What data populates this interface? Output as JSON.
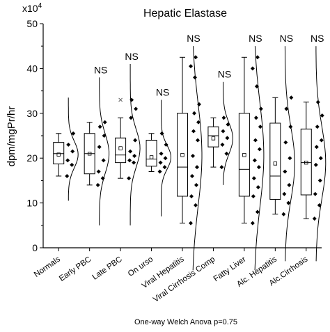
{
  "chart_data": {
    "type": "box",
    "title": "Hepatic Elastase",
    "ylabel": "dpm/mgPr/hr",
    "y_multiplier": "x10",
    "y_multiplier_exp": "4",
    "ylim": [
      0,
      50
    ],
    "yticks": [
      0,
      10,
      20,
      30,
      40,
      50
    ],
    "footnote": "One-way Welch Anova p=0.75",
    "groups": [
      {
        "label": "Normals",
        "sig": "",
        "whisker_low": 16,
        "q1": 18.7,
        "median": 21,
        "q3": 23.5,
        "whisker_high": 25.5,
        "mean": 20.8,
        "outliers": [],
        "points": [
          16,
          18.5,
          19.5,
          21.5,
          23,
          25.5
        ],
        "dist_range": [
          10.5,
          33.5
        ]
      },
      {
        "label": "Early PBC",
        "sig": "NS",
        "whisker_low": 14,
        "q1": 16.5,
        "median": 21,
        "q3": 25.5,
        "whisker_high": 28,
        "mean": 21,
        "outliers": [],
        "points": [
          14,
          15.5,
          17,
          19.5,
          22.5,
          25,
          27,
          28
        ],
        "dist_range": [
          5,
          38
        ]
      },
      {
        "label": "Late PBC",
        "sig": "NS",
        "whisker_low": 15.5,
        "q1": 19,
        "median": 20.7,
        "q3": 24.5,
        "whisker_high": 29,
        "mean": 22.2,
        "outliers": [
          33
        ],
        "points": [
          15.5,
          19,
          19.5,
          20.5,
          21.5,
          24,
          29,
          31,
          33
        ],
        "dist_range": [
          5,
          41
        ]
      },
      {
        "label": "On urso",
        "sig": "NS",
        "whisker_low": 17,
        "q1": 18.2,
        "median": 19.8,
        "q3": 24,
        "whisker_high": 25.5,
        "mean": 20.2,
        "outliers": [],
        "points": [
          17,
          18,
          19,
          20,
          21,
          23,
          25.5
        ],
        "dist_range": [
          7,
          33
        ]
      },
      {
        "label": "Viral Hepatitis",
        "sig": "NS",
        "whisker_low": 5.5,
        "q1": 11.5,
        "median": 18,
        "q3": 30,
        "whisker_high": 42.5,
        "mean": 20.7,
        "outliers": [],
        "points": [
          5.5,
          9.5,
          11.5,
          14,
          16,
          18,
          20.5,
          24,
          26,
          28,
          30,
          32,
          38,
          40.5,
          42.5
        ],
        "dist_range": [
          -5,
          45
        ]
      },
      {
        "label": "Viral Cirrhosis Comp",
        "sig": "NS",
        "whisker_low": 18,
        "q1": 22.5,
        "median": 25,
        "q3": 27,
        "whisker_high": 29,
        "mean": 24.4,
        "outliers": [],
        "points": [
          18,
          21,
          23,
          24.5,
          26,
          27.5,
          29
        ],
        "dist_range": [
          14,
          37
        ]
      },
      {
        "label": "Fatty Liver",
        "sig": "NS",
        "whisker_low": 5.5,
        "q1": 11.5,
        "median": 17.5,
        "q3": 30,
        "whisker_high": 42.5,
        "mean": 20.7,
        "outliers": [],
        "points": [
          5.5,
          8,
          11.5,
          13.5,
          15.5,
          18,
          19.5,
          22,
          24,
          27,
          29,
          31,
          36,
          40,
          42.5
        ],
        "dist_range": [
          -5,
          45
        ]
      },
      {
        "label": "Alc. Hepatitis",
        "sig": "NS",
        "whisker_low": 7.5,
        "q1": 10.8,
        "median": 16,
        "q3": 27.8,
        "whisker_high": 33.5,
        "mean": 18.8,
        "outliers": [],
        "points": [
          7.5,
          10,
          12,
          14,
          17,
          20,
          23.5,
          27,
          31,
          33.5
        ],
        "dist_range": [
          -3,
          45
        ]
      },
      {
        "label": "Alc.Cirrhosis",
        "sig": "NS",
        "whisker_low": 6.5,
        "q1": 11.8,
        "median": 19,
        "q3": 26.5,
        "whisker_high": 32.5,
        "mean": 19,
        "outliers": [],
        "points": [
          6.5,
          9.5,
          12,
          15,
          18.5,
          20,
          22.5,
          24,
          27,
          29.5,
          32.5
        ],
        "dist_range": [
          -3,
          45
        ]
      }
    ]
  }
}
